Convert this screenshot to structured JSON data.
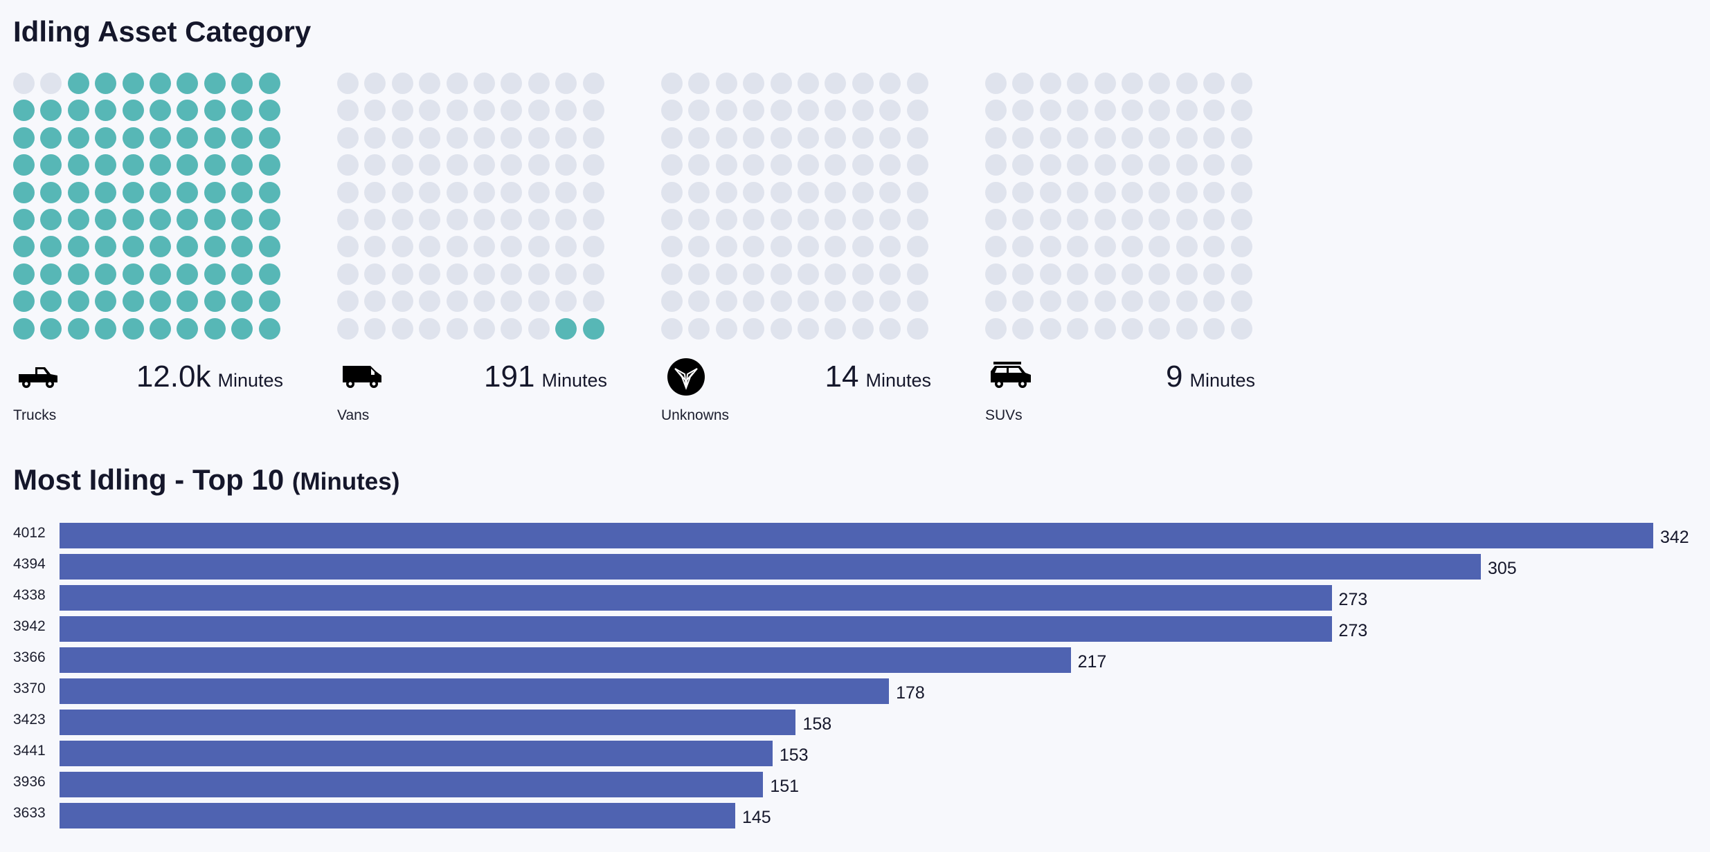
{
  "section1": {
    "title": "Idling Asset Category"
  },
  "categories": [
    {
      "name": "Trucks",
      "value": "12.0k",
      "unit": "Minutes",
      "filled_dots": 98,
      "icon": "pickup-truck-icon"
    },
    {
      "name": "Vans",
      "value": "191",
      "unit": "Minutes",
      "filled_dots": 2,
      "icon": "van-icon"
    },
    {
      "name": "Unknowns",
      "value": "14",
      "unit": "Minutes",
      "filled_dots": 0,
      "icon": "unknown-asset-icon"
    },
    {
      "name": "SUVs",
      "value": "9",
      "unit": "Minutes",
      "filled_dots": 0,
      "icon": "suv-icon"
    }
  ],
  "section2": {
    "title": "Most Idling - Top 10",
    "unit": "(Minutes)"
  },
  "colors": {
    "dot_on": "#57b7b6",
    "dot_off": "#dfe3ed",
    "bar": "#4f63b1",
    "background": "#f7f8fc"
  },
  "chart_data": {
    "type": "bar",
    "orientation": "horizontal",
    "categories": [
      "4012",
      "4394",
      "4338",
      "3942",
      "3366",
      "3370",
      "3423",
      "3441",
      "3936",
      "3633"
    ],
    "values": [
      342,
      305,
      273,
      273,
      217,
      178,
      158,
      153,
      151,
      145
    ],
    "title": "Most Idling - Top 10 (Minutes)",
    "xlim": [
      0,
      342
    ],
    "grid": false,
    "data_labels": true
  }
}
